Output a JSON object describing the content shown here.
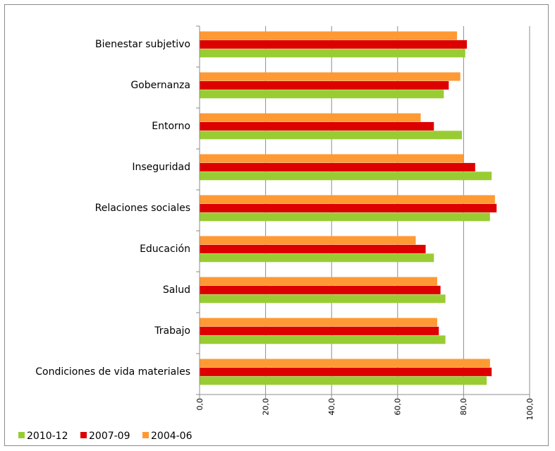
{
  "chart_data": {
    "type": "bar",
    "orientation": "horizontal",
    "categories": [
      "Bienestar subjetivo",
      "Gobernanza",
      "Entorno",
      "Inseguridad",
      "Relaciones sociales",
      "Educación",
      "Salud",
      "Trabajo",
      "Condiciones de vida materiales"
    ],
    "series": [
      {
        "name": "2004-06",
        "color": "#ff9933",
        "values": [
          78.0,
          79.0,
          67.0,
          80.0,
          89.5,
          65.5,
          72.0,
          72.0,
          88.0
        ]
      },
      {
        "name": "2007-09",
        "color": "#dd0000",
        "values": [
          81.0,
          75.5,
          71.0,
          83.5,
          90.0,
          68.5,
          73.0,
          72.5,
          88.5
        ]
      },
      {
        "name": "2010-12",
        "color": "#99cc33",
        "values": [
          80.5,
          74.0,
          79.5,
          88.5,
          88.0,
          71.0,
          74.5,
          74.5,
          87.0
        ]
      }
    ],
    "x_ticks": [
      "0,0",
      "20,0",
      "40,0",
      "60,0",
      "80,0",
      "100,0"
    ],
    "xlim": [
      0,
      100
    ],
    "grid": true,
    "legend": {
      "placement": "bottom-left",
      "entries": [
        {
          "label": "2010-12",
          "color": "#99cc33"
        },
        {
          "label": "2007-09",
          "color": "#dd0000"
        },
        {
          "label": "2004-06",
          "color": "#ff9933"
        }
      ]
    }
  }
}
